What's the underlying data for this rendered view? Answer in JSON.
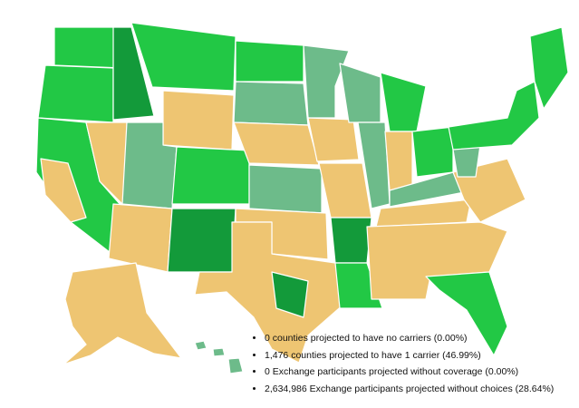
{
  "legend": {
    "items": [
      "0 counties projected to have no carriers (0.00%)",
      "1,476 counties projected to have 1 carrier (46.99%)",
      "0 Exchange participants projected without coverage (0.00%)",
      "2,634,986 Exchange participants projected without choices (28.64%)"
    ]
  }
}
